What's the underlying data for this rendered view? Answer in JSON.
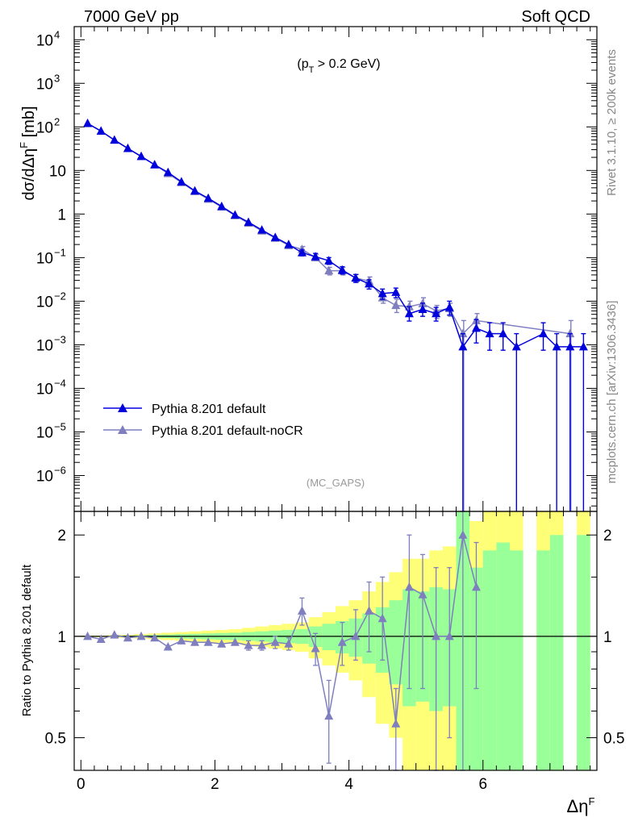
{
  "header": {
    "left": "7000 GeV pp",
    "right": "Soft QCD"
  },
  "side_text": {
    "rivet": "Rivet 3.1.10, ≥ 200k events",
    "mcplots": "mcplots.cern.ch [arXiv:1306.3436]"
  },
  "colors": {
    "default": "#0000dd",
    "nocr": "#7f7fbf",
    "band_yellow": "#ffff77",
    "band_green": "#99ff99"
  },
  "chart_data": [
    {
      "type": "scatter",
      "panel": "main",
      "title": "",
      "annotation": "(p_T > 0.2 GeV)",
      "watermark": "(MC_GAPS)",
      "ylabel": "dσ/dΔη^F [mb]",
      "yscale": "log",
      "ylim": [
        1.5e-07,
        20000
      ],
      "xlim": [
        -0.1,
        7.7
      ],
      "y_ticks": [
        {
          "v": 1e-06,
          "label": "10",
          "exp": "−6"
        },
        {
          "v": 1e-05,
          "label": "10",
          "exp": "−5"
        },
        {
          "v": 0.0001,
          "label": "10",
          "exp": "−4"
        },
        {
          "v": 0.001,
          "label": "10",
          "exp": "−3"
        },
        {
          "v": 0.01,
          "label": "10",
          "exp": "−2"
        },
        {
          "v": 0.1,
          "label": "10",
          "exp": "−1"
        },
        {
          "v": 1,
          "label": "1",
          "exp": ""
        },
        {
          "v": 10,
          "label": "10",
          "exp": ""
        },
        {
          "v": 100,
          "label": "10",
          "exp": "2"
        },
        {
          "v": 1000,
          "label": "10",
          "exp": "3"
        },
        {
          "v": 10000,
          "label": "10",
          "exp": "4"
        }
      ],
      "legend_position": "lower-left",
      "series": [
        {
          "name": "Pythia 8.201 default",
          "x": [
            0.1,
            0.3,
            0.5,
            0.7,
            0.9,
            1.1,
            1.3,
            1.5,
            1.7,
            1.9,
            2.1,
            2.3,
            2.5,
            2.7,
            2.9,
            3.1,
            3.3,
            3.5,
            3.7,
            3.9,
            4.1,
            4.3,
            4.5,
            4.7,
            4.9,
            5.1,
            5.3,
            5.5,
            5.7,
            5.9,
            6.1,
            6.3,
            6.5,
            6.9,
            7.1,
            7.3,
            7.5
          ],
          "y": [
            120,
            80,
            50,
            32,
            21,
            13.5,
            9.0,
            5.5,
            3.4,
            2.3,
            1.5,
            0.95,
            0.65,
            0.43,
            0.29,
            0.2,
            0.13,
            0.105,
            0.085,
            0.052,
            0.034,
            0.025,
            0.015,
            0.016,
            0.0052,
            0.0065,
            0.0052,
            0.0072,
            0.0009,
            0.0024,
            0.0018,
            0.0018,
            0.0009,
            0.0018,
            0.0009,
            0.0009,
            0.0009
          ],
          "ylo": [
            null,
            null,
            null,
            null,
            null,
            null,
            null,
            null,
            null,
            null,
            null,
            null,
            null,
            null,
            null,
            null,
            0.11,
            0.09,
            0.07,
            0.042,
            0.027,
            0.019,
            0.011,
            0.012,
            0.0035,
            0.0045,
            0.0035,
            0.0048,
            1e-07,
            0.0011,
            0.00075,
            0.00075,
            1e-07,
            0.00075,
            1e-07,
            1e-07,
            1e-07
          ],
          "yhi": [
            null,
            null,
            null,
            null,
            null,
            null,
            null,
            null,
            null,
            null,
            null,
            null,
            null,
            null,
            null,
            null,
            0.15,
            0.125,
            0.1,
            0.062,
            0.041,
            0.031,
            0.019,
            0.02,
            0.0075,
            0.009,
            0.0072,
            0.01,
            0.0018,
            0.0038,
            0.0032,
            0.0032,
            0.0018,
            0.0032,
            0.0018,
            0.0018,
            0.0018
          ]
        },
        {
          "name": "Pythia 8.201 default-noCR",
          "x": [
            0.1,
            0.3,
            0.5,
            0.7,
            0.9,
            1.1,
            1.3,
            1.5,
            1.7,
            1.9,
            2.1,
            2.3,
            2.5,
            2.7,
            2.9,
            3.1,
            3.3,
            3.5,
            3.7,
            3.9,
            4.1,
            4.3,
            4.5,
            4.7,
            4.9,
            5.1,
            5.3,
            5.5,
            5.7,
            5.9,
            7.3
          ],
          "y": [
            120,
            80,
            50,
            32,
            21,
            13.5,
            8.5,
            5.3,
            3.3,
            2.2,
            1.45,
            0.92,
            0.62,
            0.41,
            0.28,
            0.19,
            0.155,
            0.1,
            0.05,
            0.05,
            0.034,
            0.029,
            0.012,
            0.008,
            0.0075,
            0.0088,
            0.006,
            0.0068,
            0.0018,
            0.0036,
            0.0018
          ],
          "ylo": [
            null,
            null,
            null,
            null,
            null,
            null,
            null,
            null,
            null,
            null,
            null,
            null,
            null,
            null,
            null,
            null,
            0.13,
            0.085,
            0.04,
            0.04,
            0.027,
            0.022,
            0.009,
            0.0055,
            0.005,
            0.006,
            0.004,
            0.0045,
            1e-07,
            0.0021,
            1e-07
          ],
          "yhi": [
            null,
            null,
            null,
            null,
            null,
            null,
            null,
            null,
            null,
            null,
            null,
            null,
            null,
            null,
            null,
            null,
            0.18,
            0.12,
            0.06,
            0.06,
            0.041,
            0.036,
            0.015,
            0.011,
            0.01,
            0.012,
            0.008,
            0.009,
            0.0036,
            0.0052,
            0.0036
          ]
        }
      ]
    },
    {
      "type": "scatter",
      "panel": "ratio",
      "xlabel": "Δη^F",
      "ylabel": "Ratio to Pythia 8.201 default",
      "yscale": "log",
      "ylim": [
        0.4,
        2.35
      ],
      "xlim": [
        -0.1,
        7.7
      ],
      "x_ticks": [
        0,
        2,
        4,
        6
      ],
      "y_ticks": [
        0.5,
        1,
        2
      ],
      "bands": {
        "x_edges": [
          0,
          0.2,
          0.4,
          0.6,
          0.8,
          1.0,
          1.2,
          1.4,
          1.6,
          1.8,
          2.0,
          2.2,
          2.4,
          2.6,
          2.8,
          3.0,
          3.2,
          3.4,
          3.6,
          3.8,
          4.0,
          4.2,
          4.4,
          4.6,
          4.8,
          5.0,
          5.2,
          5.4,
          5.6,
          5.8,
          6.0,
          6.2,
          6.4,
          6.6,
          6.8,
          7.0,
          7.2,
          7.4,
          7.6
        ],
        "yellow_lo": [
          0.995,
          0.995,
          0.99,
          0.99,
          0.985,
          0.98,
          0.975,
          0.97,
          0.965,
          0.96,
          0.955,
          0.95,
          0.94,
          0.93,
          0.92,
          0.91,
          0.9,
          0.86,
          0.82,
          0.78,
          0.74,
          0.66,
          0.55,
          0.5,
          0.3,
          0.3,
          0.3,
          0.3,
          0.3,
          0.3,
          0.3,
          0.3,
          0.3,
          null,
          0.3,
          0.3,
          null,
          0.3
        ],
        "yellow_hi": [
          1.005,
          1.005,
          1.01,
          1.01,
          1.015,
          1.02,
          1.025,
          1.03,
          1.035,
          1.04,
          1.045,
          1.05,
          1.06,
          1.07,
          1.08,
          1.09,
          1.1,
          1.14,
          1.18,
          1.23,
          1.28,
          1.36,
          1.45,
          1.55,
          1.7,
          1.7,
          1.8,
          1.85,
          3.0,
          2.2,
          3.0,
          3.0,
          3.0,
          null,
          3.0,
          3.0,
          null,
          3.0
        ],
        "green_lo": [
          0.998,
          0.998,
          0.996,
          0.995,
          0.993,
          0.99,
          0.988,
          0.985,
          0.983,
          0.98,
          0.977,
          0.975,
          0.97,
          0.965,
          0.96,
          0.955,
          0.95,
          0.93,
          0.91,
          0.89,
          0.87,
          0.83,
          0.78,
          0.72,
          0.62,
          0.64,
          0.6,
          0.62,
          0.3,
          0.3,
          0.3,
          0.3,
          0.3,
          null,
          0.3,
          0.3,
          null,
          0.3
        ],
        "green_hi": [
          1.002,
          1.002,
          1.004,
          1.005,
          1.007,
          1.01,
          1.012,
          1.015,
          1.017,
          1.02,
          1.023,
          1.025,
          1.03,
          1.035,
          1.04,
          1.045,
          1.05,
          1.07,
          1.09,
          1.11,
          1.13,
          1.17,
          1.22,
          1.28,
          1.38,
          1.36,
          1.4,
          1.38,
          2.4,
          1.6,
          1.8,
          1.9,
          1.8,
          null,
          1.8,
          2.0,
          null,
          2.0
        ]
      },
      "series": [
        {
          "name": "Pythia 8.201 default-noCR",
          "x": [
            0.1,
            0.3,
            0.5,
            0.7,
            0.9,
            1.1,
            1.3,
            1.5,
            1.7,
            1.9,
            2.1,
            2.3,
            2.5,
            2.7,
            2.9,
            3.1,
            3.3,
            3.5,
            3.7,
            3.9,
            4.1,
            4.3,
            4.5,
            4.7,
            4.9,
            5.1,
            5.3,
            5.5,
            5.7,
            5.9
          ],
          "y": [
            1.0,
            0.98,
            1.01,
            0.99,
            1.0,
            0.99,
            0.93,
            0.97,
            0.96,
            0.96,
            0.95,
            0.96,
            0.94,
            0.94,
            0.96,
            0.95,
            1.19,
            0.92,
            0.58,
            0.96,
            1.0,
            1.19,
            1.13,
            0.55,
            1.4,
            1.33,
            1.0,
            1.0,
            2.0,
            1.4
          ],
          "ylo": [
            null,
            null,
            null,
            null,
            null,
            null,
            null,
            null,
            null,
            null,
            null,
            null,
            0.91,
            0.91,
            0.92,
            0.91,
            1.08,
            0.82,
            0.42,
            0.82,
            0.85,
            0.9,
            0.85,
            0.4,
            0.7,
            0.7,
            0.4,
            0.5,
            0.4,
            0.7
          ],
          "yhi": [
            null,
            null,
            null,
            null,
            null,
            null,
            null,
            null,
            null,
            null,
            null,
            null,
            0.97,
            0.97,
            1.0,
            0.99,
            1.3,
            1.02,
            0.74,
            1.1,
            1.2,
            1.45,
            1.5,
            0.7,
            2.0,
            1.75,
            1.6,
            1.6,
            2.35,
            1.9
          ]
        }
      ]
    }
  ]
}
